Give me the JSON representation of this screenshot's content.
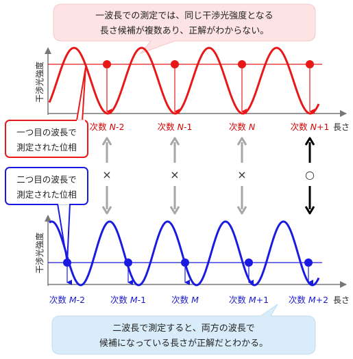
{
  "callouts": {
    "top": {
      "line1": "一波長での測定では、同じ干渉光強度となる",
      "line2": "長さ候補が複数あり、正解がわからない。"
    },
    "bottom": {
      "line1": "二波長で測定すると、両方の波長で",
      "line2": "候補になっている長さが正解だとわかる。"
    }
  },
  "boxes": {
    "red": {
      "line1": "一つ目の波長で",
      "line2": "測定された位相"
    },
    "blue": {
      "line1": "二つ目の波長で",
      "line2": "測定された位相"
    }
  },
  "axes": {
    "y_label": "干渉光強度",
    "x_label": "長さ"
  },
  "top_graph": {
    "color": "#e81818",
    "order_labels": [
      {
        "prefix": "次数 ",
        "var": "N",
        "suffix": "-2"
      },
      {
        "prefix": "次数 ",
        "var": "N",
        "suffix": "-1"
      },
      {
        "prefix": "次数 ",
        "var": "N",
        "suffix": ""
      },
      {
        "prefix": "次数 ",
        "var": "N",
        "suffix": "+1"
      }
    ]
  },
  "bottom_graph": {
    "color": "#1a1ae0",
    "order_labels": [
      {
        "prefix": "次数 ",
        "var": "M",
        "suffix": "-2"
      },
      {
        "prefix": "次数 ",
        "var": "M",
        "suffix": "-1"
      },
      {
        "prefix": "次数 ",
        "var": "M",
        "suffix": ""
      },
      {
        "prefix": "次数 ",
        "var": "M",
        "suffix": "+1"
      },
      {
        "prefix": "次数 ",
        "var": "M",
        "suffix": "+2"
      }
    ]
  },
  "comparisons": [
    "×",
    "×",
    "×",
    "○"
  ]
}
